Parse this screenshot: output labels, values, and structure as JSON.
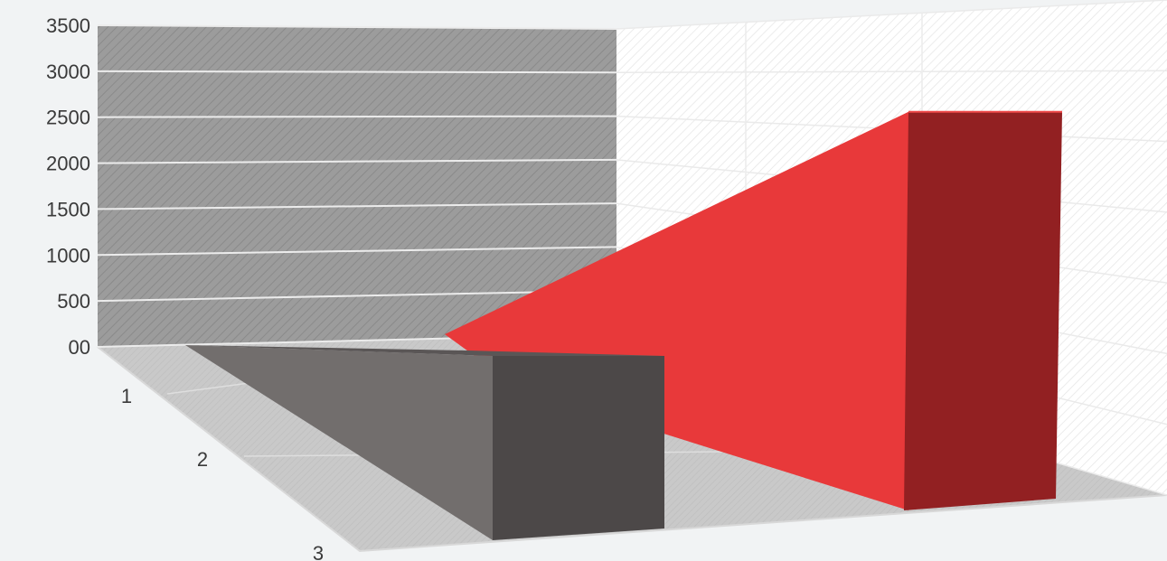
{
  "chart_data": {
    "type": "bar",
    "subtype": "3d-wedge",
    "title": "",
    "xlabel": "",
    "ylabel": "",
    "ylim": [
      0,
      3500
    ],
    "y_ticks": [
      "00",
      "500",
      "1000",
      "1500",
      "2000",
      "2500",
      "3000",
      "3500"
    ],
    "depth_ticks": [
      "1",
      "2",
      "3"
    ],
    "grid": true,
    "legend": "none",
    "series": [
      {
        "values": [
          0,
          2900
        ],
        "color": "#e8393a",
        "side_color": "#922022"
      },
      {
        "values": [
          0,
          700
        ],
        "color": "#4c4848",
        "side_color": "#726e6d"
      }
    ],
    "colors": {
      "background": "#f1f3f4",
      "back_wall": "#9b9b9b",
      "side_wall": "#ffffff",
      "floor": "#c7c7c7",
      "gridline": "#ececec"
    }
  }
}
